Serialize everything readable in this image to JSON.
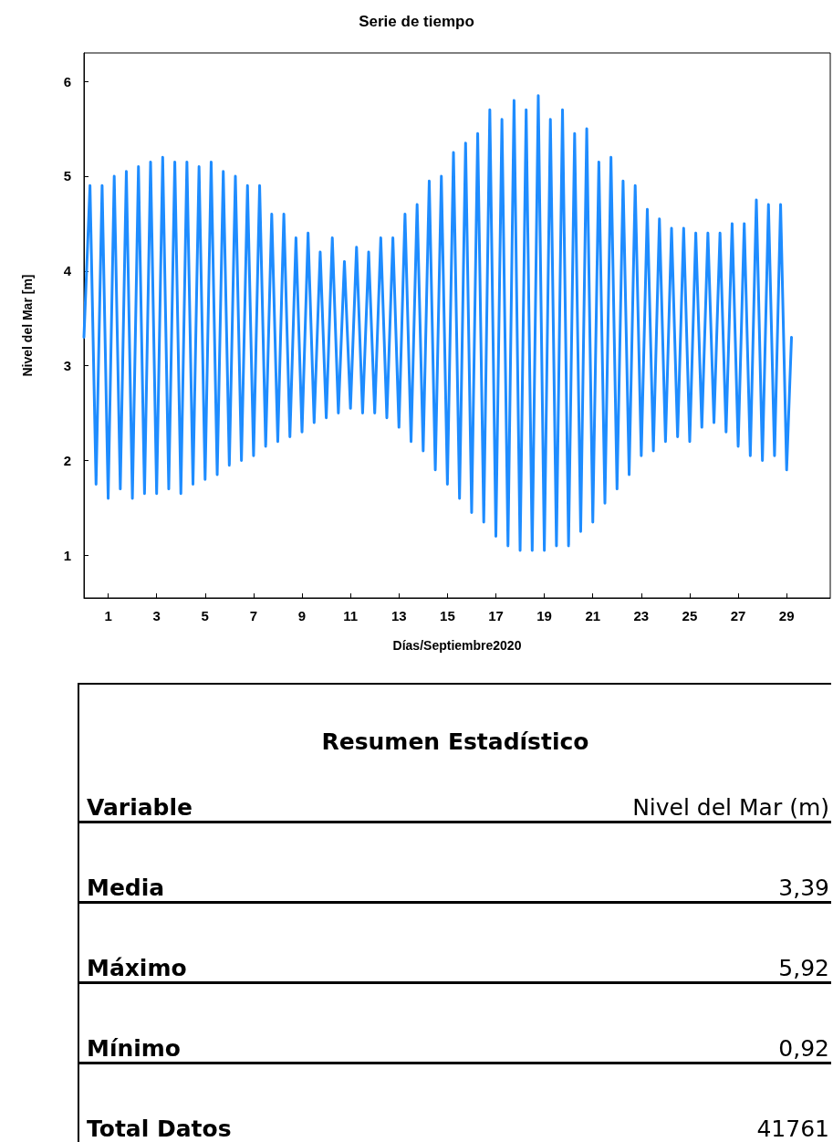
{
  "chart_data": [
    {
      "type": "line",
      "title": "Serie de tiempo",
      "xlabel": "Días/Septiembre2020",
      "ylabel": "Nivel del Mar [m]",
      "xlim": [
        0,
        30.8
      ],
      "xticks": [
        1,
        3,
        5,
        7,
        9,
        11,
        13,
        15,
        17,
        19,
        21,
        23,
        25,
        27,
        29
      ],
      "ylim": [
        0.55,
        6.3
      ],
      "yticks": [
        1,
        2,
        3,
        4,
        5,
        6
      ],
      "grid": false,
      "marker": "none",
      "line_style": "solid",
      "series": [
        {
          "color": "#1e8cff",
          "x": [
            0,
            0.25,
            0.5,
            0.75,
            1,
            1.25,
            1.5,
            1.75,
            2,
            2.25,
            2.5,
            2.75,
            3,
            3.25,
            3.5,
            3.75,
            4,
            4.25,
            4.5,
            4.75,
            5,
            5.25,
            5.5,
            5.75,
            6,
            6.25,
            6.5,
            6.75,
            7,
            7.25,
            7.5,
            7.75,
            8,
            8.25,
            8.5,
            8.75,
            9,
            9.25,
            9.5,
            9.75,
            10,
            10.25,
            10.5,
            10.75,
            11,
            11.25,
            11.5,
            11.75,
            12,
            12.25,
            12.5,
            12.75,
            13,
            13.25,
            13.5,
            13.75,
            14,
            14.25,
            14.5,
            14.75,
            15,
            15.25,
            15.5,
            15.75,
            16,
            16.25,
            16.5,
            16.75,
            17,
            17.25,
            17.5,
            17.75,
            18,
            18.25,
            18.5,
            18.75,
            19,
            19.25,
            19.5,
            19.75,
            20,
            20.25,
            20.5,
            20.75,
            21,
            21.25,
            21.5,
            21.75,
            22,
            22.25,
            22.5,
            22.75,
            23,
            23.25,
            23.5,
            23.75,
            24,
            24.25,
            24.5,
            24.75,
            25,
            25.25,
            25.5,
            25.75,
            26,
            26.25,
            26.5,
            26.75,
            27,
            27.25,
            27.5,
            27.75,
            28,
            28.25,
            28.5,
            28.75,
            29,
            29.2
          ],
          "values": [
            3.3,
            4.9,
            1.75,
            4.9,
            1.6,
            5.0,
            1.7,
            5.05,
            1.6,
            5.1,
            1.65,
            5.15,
            1.65,
            5.2,
            1.7,
            5.15,
            1.65,
            5.15,
            1.75,
            5.1,
            1.8,
            5.15,
            1.85,
            5.05,
            1.95,
            5.0,
            2.0,
            4.9,
            2.05,
            4.9,
            2.15,
            4.6,
            2.2,
            4.6,
            2.25,
            4.35,
            2.3,
            4.4,
            2.4,
            4.2,
            2.45,
            4.35,
            2.5,
            4.1,
            2.55,
            4.25,
            2.5,
            4.2,
            2.5,
            4.35,
            2.45,
            4.35,
            2.35,
            4.6,
            2.2,
            4.7,
            2.1,
            4.95,
            1.9,
            5.0,
            1.75,
            5.25,
            1.6,
            5.35,
            1.45,
            5.45,
            1.35,
            5.7,
            1.2,
            5.6,
            1.1,
            5.8,
            1.05,
            5.7,
            1.05,
            5.85,
            1.05,
            5.6,
            1.1,
            5.7,
            1.1,
            5.45,
            1.25,
            5.5,
            1.35,
            5.15,
            1.55,
            5.2,
            1.7,
            4.95,
            1.85,
            4.9,
            2.05,
            4.65,
            2.1,
            4.55,
            2.2,
            4.45,
            2.25,
            4.45,
            2.2,
            4.4,
            2.35,
            4.4,
            2.4,
            4.4,
            2.3,
            4.5,
            2.15,
            4.5,
            2.05,
            4.75,
            2.0,
            4.7,
            2.05,
            4.7,
            1.9,
            3.3
          ]
        }
      ]
    },
    {
      "type": "other",
      "title": "Resumen Estadístico",
      "annotations": [
        "Variable",
        "Nivel del Mar (m)"
      ],
      "categories": [
        "Media",
        "Máximo",
        "Mínimo",
        "Total Datos"
      ],
      "value_labels": [
        "3,39",
        "5,92",
        "0,92",
        "41761"
      ]
    }
  ]
}
